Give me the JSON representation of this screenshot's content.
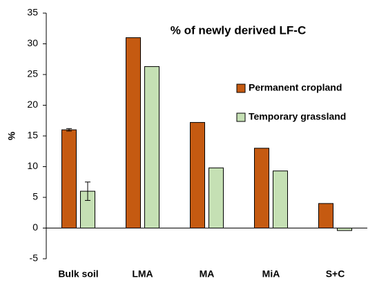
{
  "chart_data": {
    "type": "bar",
    "title": "% of newly derived LF-C",
    "y_label": "%",
    "categories": [
      "Bulk soil",
      "LMA",
      "MA",
      "MiA",
      "S+C"
    ],
    "series": [
      {
        "name": "Permanent cropland",
        "color": "#c55a11",
        "values": [
          16,
          31,
          17.2,
          13,
          4
        ],
        "errors": [
          0.2,
          null,
          null,
          null,
          null
        ]
      },
      {
        "name": "Temporary grassland",
        "color": "#c5e0b4",
        "values": [
          6,
          26.3,
          9.8,
          9.3,
          -0.4
        ],
        "errors": [
          1.5,
          null,
          null,
          null,
          null
        ]
      }
    ],
    "ylim": [
      -5,
      35
    ],
    "yticks": [
      -5,
      0,
      5,
      10,
      15,
      20,
      25,
      30,
      35
    ],
    "grid": false
  }
}
